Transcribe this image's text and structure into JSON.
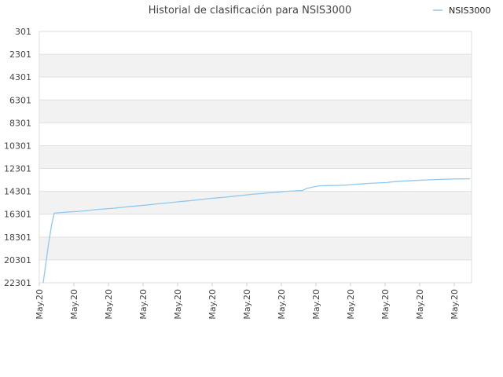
{
  "chart_data": {
    "type": "line",
    "title": "Historial de clasificación para NSIS3000",
    "xlabel": "",
    "ylabel": "",
    "y_inverted": true,
    "ylim": [
      301,
      22301
    ],
    "yticks": [
      "301",
      "2301",
      "4301",
      "6301",
      "8301",
      "10301",
      "12301",
      "14301",
      "16301",
      "18301",
      "20301",
      "22301"
    ],
    "xticks": [
      "May.20",
      "May.20",
      "May.20",
      "May.20",
      "May.20",
      "May.20",
      "May.20",
      "May.20",
      "May.20",
      "May.20",
      "May.20",
      "May.20",
      "May.20"
    ],
    "grid": true,
    "legend_position": "top-right",
    "series": [
      {
        "name": "NSIS3000",
        "color": "#90c8f0",
        "points": [
          [
            0.0,
            22301
          ],
          [
            0.6,
            19000
          ],
          [
            1.0,
            17200
          ],
          [
            1.3,
            16200
          ],
          [
            2.3,
            16150
          ],
          [
            3.1,
            16100
          ],
          [
            4.2,
            16050
          ],
          [
            5.2,
            15980
          ],
          [
            6.2,
            15900
          ],
          [
            7.2,
            15840
          ],
          [
            8.3,
            15780
          ],
          [
            9.3,
            15700
          ],
          [
            10.4,
            15620
          ],
          [
            11.4,
            15550
          ],
          [
            12.4,
            15480
          ],
          [
            13.4,
            15400
          ],
          [
            14.4,
            15330
          ],
          [
            15.5,
            15250
          ],
          [
            16.5,
            15170
          ],
          [
            17.5,
            15100
          ],
          [
            18.5,
            15020
          ],
          [
            19.5,
            14940
          ],
          [
            20.6,
            14860
          ],
          [
            21.6,
            14800
          ],
          [
            22.6,
            14720
          ],
          [
            23.6,
            14640
          ],
          [
            24.6,
            14560
          ],
          [
            25.6,
            14500
          ],
          [
            26.6,
            14430
          ],
          [
            27.6,
            14380
          ],
          [
            28.6,
            14300
          ],
          [
            29.6,
            14260
          ],
          [
            30.6,
            14220
          ],
          [
            31.0,
            14050
          ],
          [
            32.0,
            13900
          ],
          [
            32.5,
            13820
          ],
          [
            33.5,
            13800
          ],
          [
            34.5,
            13780
          ],
          [
            35.5,
            13760
          ],
          [
            36.5,
            13700
          ],
          [
            37.5,
            13650
          ],
          [
            38.5,
            13600
          ],
          [
            39.5,
            13560
          ],
          [
            40.5,
            13530
          ],
          [
            41.0,
            13480
          ],
          [
            42.0,
            13420
          ],
          [
            43.0,
            13380
          ],
          [
            44.0,
            13340
          ],
          [
            45.0,
            13300
          ],
          [
            46.5,
            13260
          ],
          [
            48.5,
            13220
          ],
          [
            50.3,
            13200
          ]
        ]
      }
    ]
  }
}
